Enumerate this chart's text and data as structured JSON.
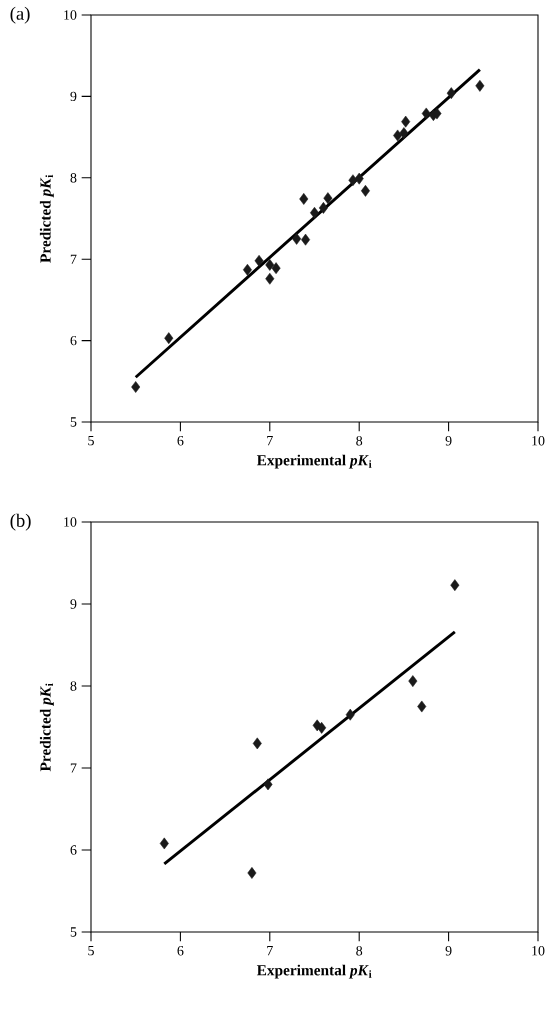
{
  "chart_data": [
    {
      "type": "scatter",
      "xlabel": "Experimental *pK*$_{i}$",
      "ylabel": "Predicted *pK*$_{i}$",
      "annotations": [
        "(a)"
      ],
      "xlim": [
        5,
        10
      ],
      "ylim": [
        5,
        10
      ],
      "xticks": [
        5,
        6,
        7,
        8,
        9,
        10
      ],
      "yticks": [
        5,
        6,
        7,
        8,
        9,
        10
      ],
      "series": [
        {
          "marker": "diamond",
          "color": "#1a1a1a",
          "x": [
            5.5,
            5.87,
            6.75,
            6.88,
            7.0,
            7.0,
            7.07,
            7.3,
            7.38,
            7.4,
            7.5,
            7.6,
            7.65,
            7.93,
            8.0,
            8.07,
            8.43,
            8.5,
            8.52,
            8.75,
            8.83,
            8.87,
            9.03,
            9.35
          ],
          "values": [
            5.43,
            6.03,
            6.87,
            6.98,
            6.76,
            6.93,
            6.89,
            7.25,
            7.74,
            7.24,
            7.57,
            7.63,
            7.75,
            7.97,
            7.99,
            7.84,
            8.52,
            8.55,
            8.69,
            8.79,
            8.77,
            8.79,
            9.04,
            9.13
          ]
        },
        {
          "type": "line",
          "marker": "none",
          "color": "#000000",
          "x": [
            5.5,
            9.35
          ],
          "values": [
            5.55,
            9.33
          ]
        }
      ]
    },
    {
      "type": "scatter",
      "xlabel": "Experimental *pK*$_{i}$",
      "ylabel": "Predicted *pK*$_{i}$",
      "annotations": [
        "(b)"
      ],
      "xlim": [
        5,
        10
      ],
      "ylim": [
        5,
        10
      ],
      "xticks": [
        5,
        6,
        7,
        8,
        9,
        10
      ],
      "yticks": [
        5,
        6,
        7,
        8,
        9,
        10
      ],
      "series": [
        {
          "marker": "diamond",
          "color": "#1a1a1a",
          "x": [
            5.82,
            6.8,
            6.86,
            6.98,
            7.53,
            7.58,
            7.9,
            8.6,
            8.7,
            9.07
          ],
          "values": [
            6.08,
            5.72,
            7.3,
            6.8,
            7.52,
            7.49,
            7.65,
            8.06,
            7.75,
            9.23
          ]
        },
        {
          "type": "line",
          "marker": "none",
          "color": "#000000",
          "x": [
            5.82,
            9.07
          ],
          "values": [
            5.83,
            8.66
          ]
        }
      ]
    }
  ]
}
